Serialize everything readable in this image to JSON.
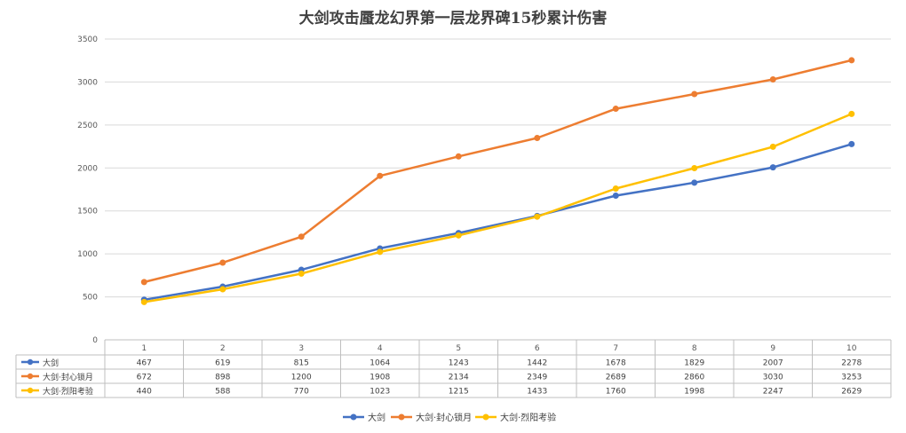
{
  "chart_data": {
    "type": "line",
    "title": "大剑攻击蜃龙幻界第一层龙界碑15秒累计伤害",
    "categories": [
      "1",
      "2",
      "3",
      "4",
      "5",
      "6",
      "7",
      "8",
      "9",
      "10"
    ],
    "series": [
      {
        "name": "大剑",
        "color": "#4472C4",
        "values": [
          467,
          619,
          815,
          1064,
          1243,
          1442,
          1678,
          1829,
          2007,
          2278
        ]
      },
      {
        "name": "大剑·封心锁月",
        "color": "#ED7D31",
        "values": [
          672,
          898,
          1200,
          1908,
          2134,
          2349,
          2689,
          2860,
          3030,
          3253
        ]
      },
      {
        "name": "大剑·烈阳考验",
        "color": "#FFC000",
        "values": [
          440,
          588,
          770,
          1023,
          1215,
          1433,
          1760,
          1998,
          2247,
          2629
        ]
      }
    ],
    "yticks": [
      "0",
      "500",
      "1000",
      "1500",
      "2000",
      "2500",
      "3000",
      "3500"
    ],
    "ylim": [
      0,
      3500
    ],
    "grid": true,
    "data_table": true,
    "legend_position": "bottom"
  }
}
